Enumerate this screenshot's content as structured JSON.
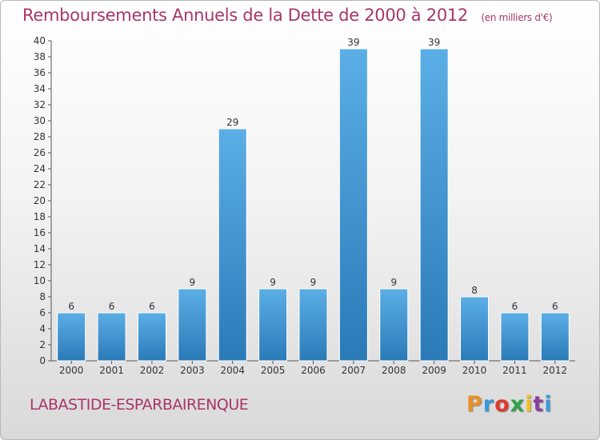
{
  "header": {
    "title": "Remboursements Annuels de la Dette de 2000 à 2012",
    "unit": "(en milliers d'€)"
  },
  "footer": {
    "commune": "LABASTIDE-ESPARBAIRENQUE",
    "logo": "Proxiti",
    "logo_colors": [
      "#e8902a",
      "#3a9ad9",
      "#e03a2f",
      "#2fa24a",
      "#f0c020",
      "#8a3fa0",
      "#3a9ad9"
    ]
  },
  "colors": {
    "bar_top": "#5caee6",
    "bar_bottom": "#2a7ab8",
    "title": "#a8366a",
    "axis": "#555555"
  },
  "chart_data": {
    "type": "bar",
    "title": "Remboursements Annuels de la Dette de 2000 à 2012",
    "unit": "(en milliers d'€)",
    "categories": [
      "2000",
      "2001",
      "2002",
      "2003",
      "2004",
      "2005",
      "2006",
      "2007",
      "2008",
      "2009",
      "2010",
      "2011",
      "2012"
    ],
    "values": [
      6,
      6,
      6,
      9,
      29,
      9,
      9,
      39,
      9,
      39,
      8,
      6,
      6
    ],
    "ylim": [
      0,
      40
    ],
    "ytick_step": 2,
    "grid": false,
    "data_labels": true
  }
}
